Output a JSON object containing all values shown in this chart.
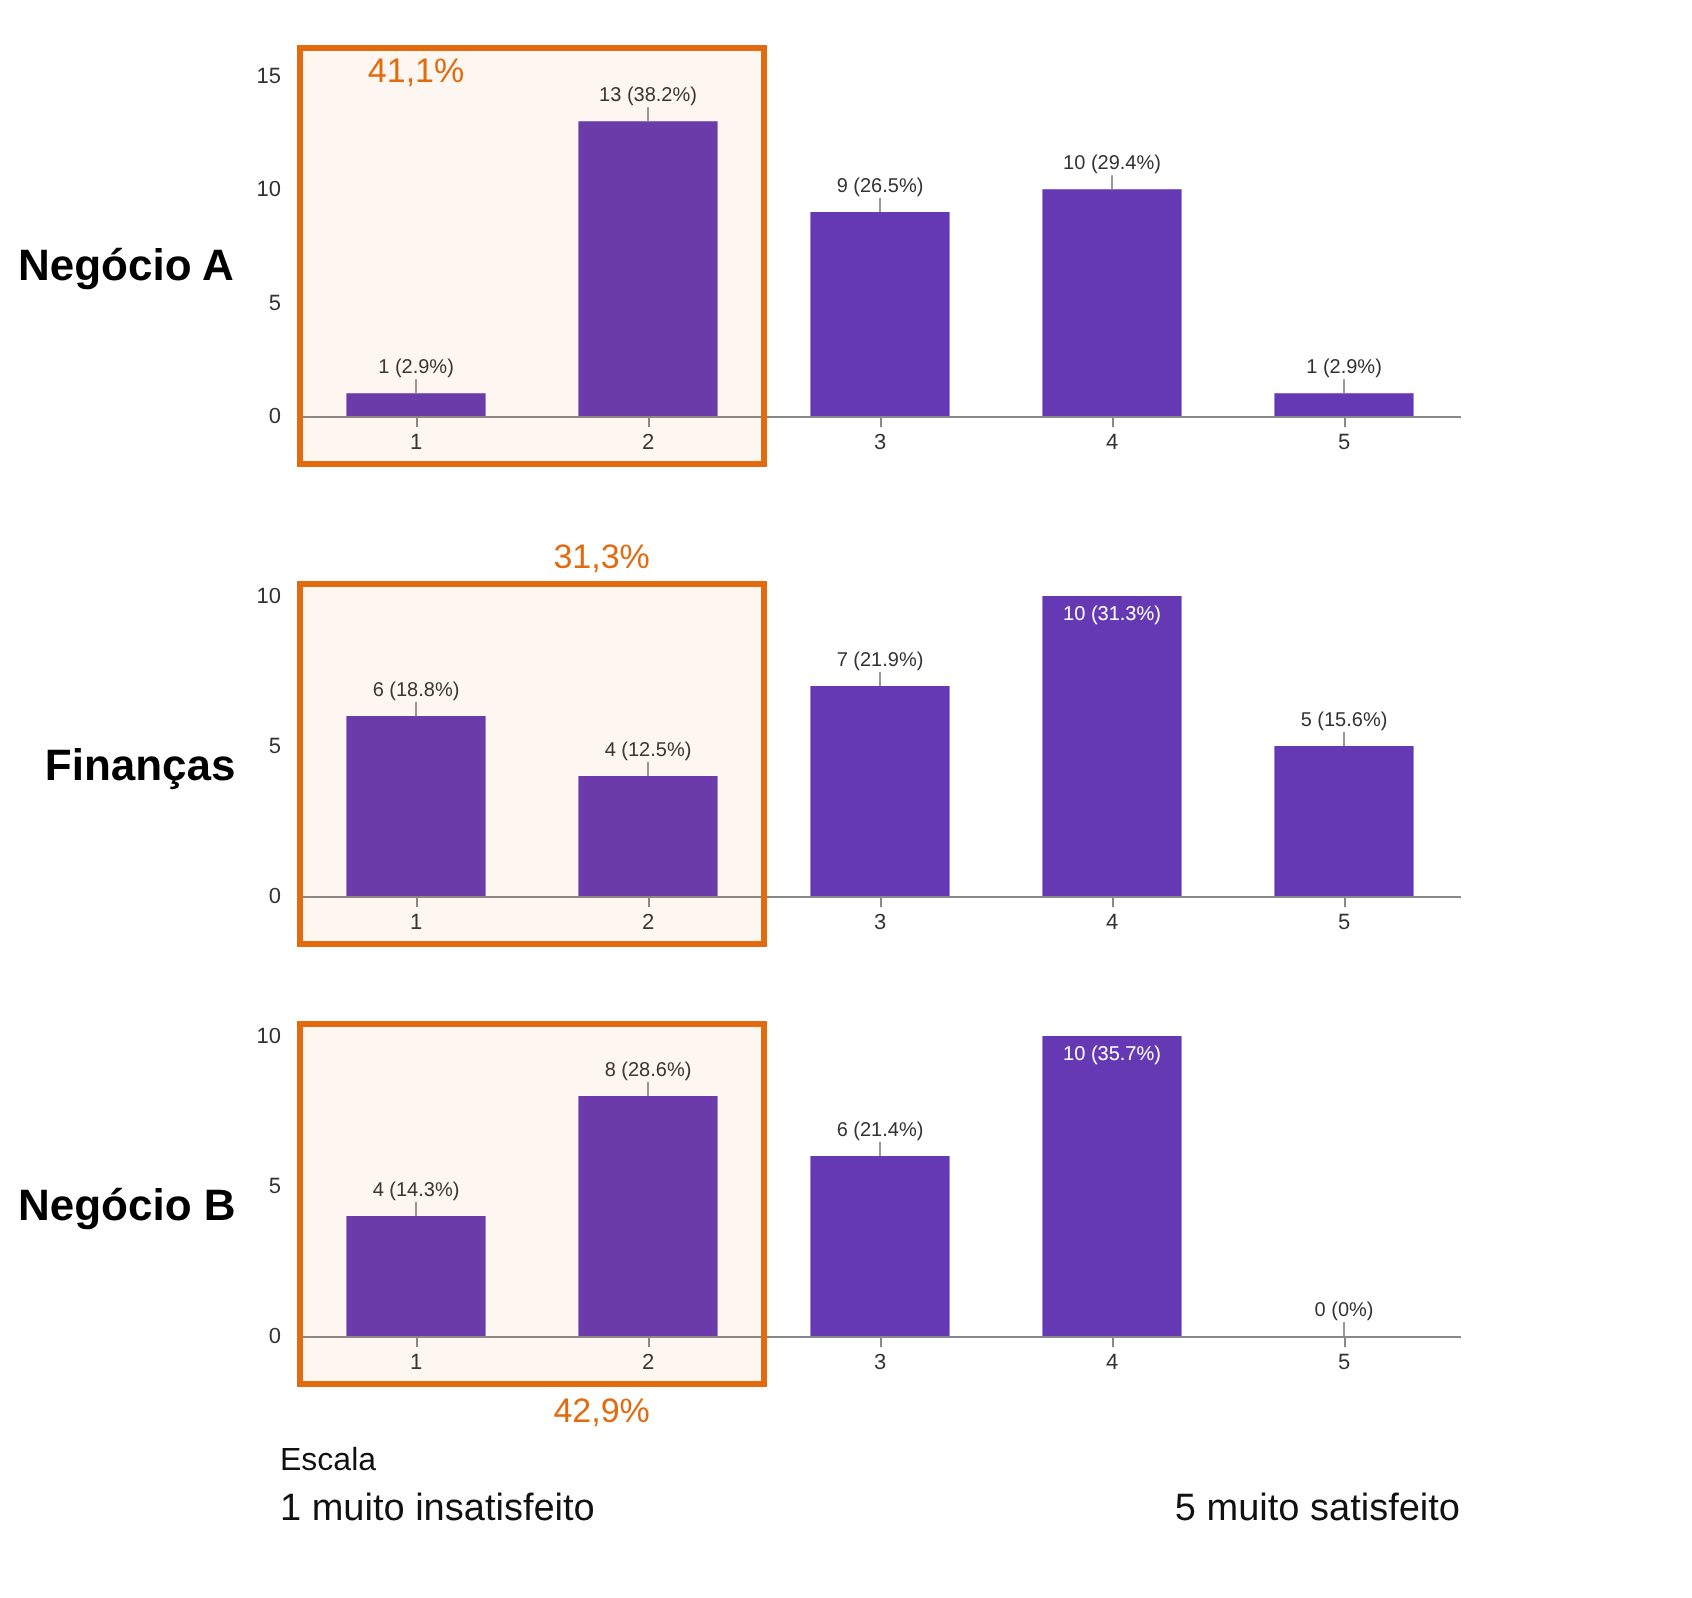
{
  "chart_data": [
    {
      "type": "bar",
      "title": "Negócio A",
      "categories": [
        "1",
        "2",
        "3",
        "4",
        "5"
      ],
      "values": [
        1,
        13,
        9,
        10,
        1
      ],
      "color": "#6439b3",
      "value_labels": [
        "1 (2.9%)",
        "13 (38.2%)",
        "9 (26.5%)",
        "10 (29.4%)",
        "1 (2.9%)"
      ],
      "ylim": [
        0,
        15
      ],
      "yticks": [
        0,
        5,
        10,
        15
      ],
      "grid": false,
      "legend": false,
      "bands": [
        {
          "axis": "x",
          "from": "1",
          "to": "2",
          "label": "41,1%",
          "color": "#e26b10"
        }
      ]
    },
    {
      "type": "bar",
      "title": "Finanças",
      "categories": [
        "1",
        "2",
        "3",
        "4",
        "5"
      ],
      "values": [
        6,
        4,
        7,
        10,
        5
      ],
      "color": "#6439b3",
      "value_labels": [
        "6 (18.8%)",
        "4 (12.5%)",
        "7 (21.9%)",
        "10 (31.3%)",
        "5 (15.6%)"
      ],
      "ylim": [
        0,
        10
      ],
      "yticks": [
        0,
        5,
        10
      ],
      "grid": false,
      "legend": false,
      "bands": [
        {
          "axis": "x",
          "from": "1",
          "to": "2",
          "label": "31,3%",
          "color": "#e26b10"
        }
      ]
    },
    {
      "type": "bar",
      "title": "Negócio B",
      "categories": [
        "1",
        "2",
        "3",
        "4",
        "5"
      ],
      "values": [
        4,
        8,
        6,
        10,
        0
      ],
      "color": "#6439b3",
      "value_labels": [
        "4 (14.3%)",
        "8 (28.6%)",
        "6 (21.4%)",
        "10 (35.7%)",
        "0 (0%)"
      ],
      "ylim": [
        0,
        10
      ],
      "yticks": [
        0,
        5,
        10
      ],
      "grid": false,
      "legend": false,
      "bands": [
        {
          "axis": "x",
          "from": "1",
          "to": "2",
          "label": "42,9%",
          "color": "#e26b10"
        }
      ],
      "annotations": [
        "Escala",
        "1 muito insatisfeito",
        "5 muito satisfeito"
      ]
    }
  ]
}
